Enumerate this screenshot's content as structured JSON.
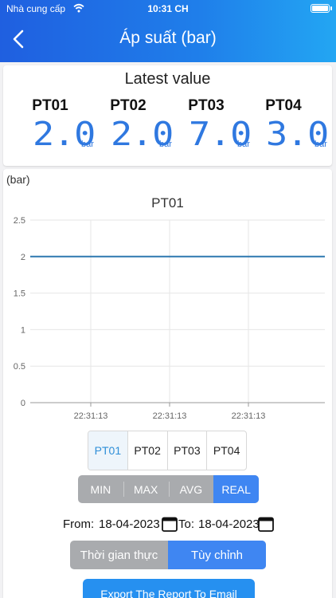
{
  "status_bar": {
    "carrier": "Nhà cung cấp",
    "time": "10:31 CH"
  },
  "header": {
    "title": "Áp suất (bar)"
  },
  "latest": {
    "title": "Latest value",
    "sensors": [
      {
        "name": "PT01",
        "value": "2.0",
        "unit": "bar"
      },
      {
        "name": "PT02",
        "value": "2.0",
        "unit": "bar"
      },
      {
        "name": "PT03",
        "value": "7.0",
        "unit": "bar"
      },
      {
        "name": "PT04",
        "value": "3.0",
        "unit": "bar"
      }
    ]
  },
  "chart_data": {
    "type": "line",
    "title": "PT01",
    "unit_label": "(bar)",
    "x": [
      "22:31:13",
      "22:31:13",
      "22:31:13"
    ],
    "series": [
      {
        "values": [
          2,
          2,
          2
        ]
      }
    ],
    "ylim": [
      0,
      2.5
    ],
    "yticks": [
      "0",
      "0.5",
      "1",
      "1.5",
      "2",
      "2.5"
    ],
    "grid": true,
    "line_color": "#2e78b0"
  },
  "series_selector": {
    "options": [
      "PT01",
      "PT02",
      "PT03",
      "PT04"
    ],
    "selected": "PT01"
  },
  "stat_selector": {
    "options": [
      "MIN",
      "MAX",
      "AVG",
      "REAL"
    ],
    "selected": "REAL"
  },
  "date_range": {
    "from_label": "From:",
    "from": "18-04-2023",
    "to_label": "To:",
    "to": "18-04-2023"
  },
  "mode_selector": {
    "options": [
      "Thời gian thực",
      "Tùy chỉnh"
    ],
    "selected": "Tùy chỉnh"
  },
  "export": {
    "label": "Export The Report To Email"
  },
  "colors": {
    "header_start": "#1f5fe0",
    "header_end": "#23a6f3",
    "accent": "#3f86f2",
    "value_blue": "#2f78e0"
  }
}
